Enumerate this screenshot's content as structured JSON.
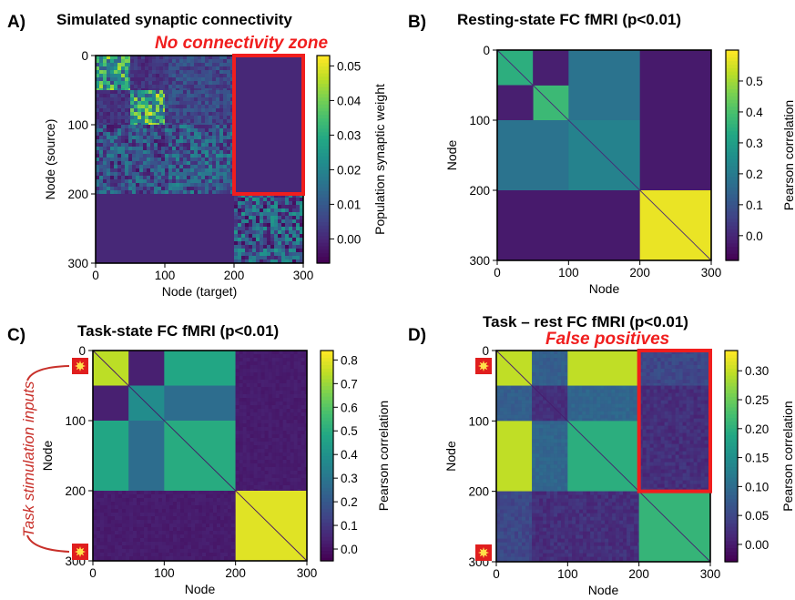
{
  "figure": {
    "annotations": {
      "no_connectivity_zone": "No connectivity zone",
      "false_positives": "False positives",
      "task_stimulation_inputs": "Task stimulation inputs"
    },
    "colormap": "viridis",
    "highlight_color": "#f01e1e",
    "stim_marker_color": "#e01e1e",
    "stim_marker_center_color": "#ffe14a"
  },
  "chart_data": [
    {
      "panel": "A)",
      "type": "heatmap",
      "title": "Simulated synaptic connectivity",
      "xlabel": "Node (target)",
      "ylabel": "Node (source)",
      "xticks": [
        0,
        100,
        200,
        300
      ],
      "yticks": [
        0,
        100,
        200,
        300
      ],
      "xlim": [
        0,
        300
      ],
      "ylim": [
        300,
        0
      ],
      "colorbar": {
        "label": "Population synaptic weight",
        "range": [
          -0.007,
          0.053
        ],
        "ticks": [
          "0.00",
          "0.01",
          "0.02",
          "0.03",
          "0.04",
          "0.05"
        ],
        "tick_values": [
          0.0,
          0.01,
          0.02,
          0.03,
          0.04,
          0.05
        ]
      },
      "blocks": [
        {
          "rows": [
            0,
            50
          ],
          "cols": [
            0,
            50
          ],
          "value": 0.025,
          "noise": 0.022
        },
        {
          "rows": [
            0,
            50
          ],
          "cols": [
            50,
            100
          ],
          "value": 0.002,
          "noise": 0.004
        },
        {
          "rows": [
            0,
            50
          ],
          "cols": [
            100,
            200
          ],
          "value": 0.006,
          "noise": 0.006
        },
        {
          "rows": [
            50,
            100
          ],
          "cols": [
            0,
            50
          ],
          "value": 0.002,
          "noise": 0.004
        },
        {
          "rows": [
            50,
            100
          ],
          "cols": [
            50,
            100
          ],
          "value": 0.028,
          "noise": 0.022
        },
        {
          "rows": [
            50,
            100
          ],
          "cols": [
            100,
            200
          ],
          "value": 0.006,
          "noise": 0.006
        },
        {
          "rows": [
            100,
            200
          ],
          "cols": [
            0,
            100
          ],
          "value": 0.008,
          "noise": 0.012
        },
        {
          "rows": [
            100,
            200
          ],
          "cols": [
            100,
            200
          ],
          "value": 0.01,
          "noise": 0.012
        },
        {
          "rows": [
            0,
            200
          ],
          "cols": [
            200,
            300
          ],
          "value": 0.0,
          "noise": 0.0
        },
        {
          "rows": [
            200,
            300
          ],
          "cols": [
            0,
            200
          ],
          "value": 0.0,
          "noise": 0.0
        },
        {
          "rows": [
            200,
            300
          ],
          "cols": [
            200,
            300
          ],
          "value": 0.01,
          "noise": 0.016
        }
      ],
      "diagonal_value": null,
      "highlight_box": {
        "rows": [
          0,
          200
        ],
        "cols": [
          200,
          300
        ]
      }
    },
    {
      "panel": "B)",
      "type": "heatmap",
      "title": "Resting-state FC fMRI (p<0.01)",
      "xlabel": "Node",
      "ylabel": "Node",
      "xticks": [
        0,
        100,
        200,
        300
      ],
      "yticks": [
        0,
        100,
        200,
        300
      ],
      "xlim": [
        0,
        300
      ],
      "ylim": [
        300,
        0
      ],
      "colorbar": {
        "label": "Pearson correlation",
        "range": [
          -0.08,
          0.6
        ],
        "ticks": [
          "0.0",
          "0.1",
          "0.2",
          "0.3",
          "0.4",
          "0.5"
        ],
        "tick_values": [
          0.0,
          0.1,
          0.2,
          0.3,
          0.4,
          0.5
        ]
      },
      "blocks": [
        {
          "rows": [
            0,
            50
          ],
          "cols": [
            0,
            50
          ],
          "value": 0.35,
          "noise": 0.0
        },
        {
          "rows": [
            50,
            100
          ],
          "cols": [
            50,
            100
          ],
          "value": 0.38,
          "noise": 0.0
        },
        {
          "rows": [
            0,
            50
          ],
          "cols": [
            50,
            100
          ],
          "value": -0.02,
          "noise": 0.0
        },
        {
          "rows": [
            50,
            100
          ],
          "cols": [
            0,
            50
          ],
          "value": -0.02,
          "noise": 0.0
        },
        {
          "rows": [
            0,
            100
          ],
          "cols": [
            100,
            200
          ],
          "value": 0.18,
          "noise": 0.0
        },
        {
          "rows": [
            100,
            200
          ],
          "cols": [
            0,
            100
          ],
          "value": 0.18,
          "noise": 0.0
        },
        {
          "rows": [
            100,
            200
          ],
          "cols": [
            100,
            200
          ],
          "value": 0.22,
          "noise": 0.0
        },
        {
          "rows": [
            0,
            200
          ],
          "cols": [
            200,
            300
          ],
          "value": -0.03,
          "noise": 0.0
        },
        {
          "rows": [
            200,
            300
          ],
          "cols": [
            0,
            200
          ],
          "value": -0.03,
          "noise": 0.0
        },
        {
          "rows": [
            200,
            300
          ],
          "cols": [
            200,
            300
          ],
          "value": 0.58,
          "noise": 0.0
        }
      ],
      "diagonal_value": 0.0,
      "highlight_box": null
    },
    {
      "panel": "C)",
      "type": "heatmap",
      "title": "Task-state FC fMRI (p<0.01)",
      "xlabel": "Node",
      "ylabel": "Node",
      "xticks": [
        0,
        100,
        200,
        300
      ],
      "yticks": [
        0,
        100,
        200,
        300
      ],
      "xlim": [
        0,
        300
      ],
      "ylim": [
        300,
        0
      ],
      "colorbar": {
        "label": "Pearson correlation",
        "range": [
          -0.05,
          0.84
        ],
        "ticks": [
          "0.0",
          "0.1",
          "0.2",
          "0.3",
          "0.4",
          "0.5",
          "0.6",
          "0.7",
          "0.8"
        ],
        "tick_values": [
          0.0,
          0.1,
          0.2,
          0.3,
          0.4,
          0.5,
          0.6,
          0.7,
          0.8
        ]
      },
      "blocks": [
        {
          "rows": [
            0,
            50
          ],
          "cols": [
            0,
            50
          ],
          "value": 0.75,
          "noise": 0.0
        },
        {
          "rows": [
            0,
            50
          ],
          "cols": [
            50,
            100
          ],
          "value": 0.03,
          "noise": 0.0
        },
        {
          "rows": [
            50,
            100
          ],
          "cols": [
            0,
            50
          ],
          "value": 0.03,
          "noise": 0.0
        },
        {
          "rows": [
            50,
            100
          ],
          "cols": [
            50,
            100
          ],
          "value": 0.38,
          "noise": 0.0
        },
        {
          "rows": [
            0,
            50
          ],
          "cols": [
            100,
            200
          ],
          "value": 0.48,
          "noise": 0.0
        },
        {
          "rows": [
            100,
            200
          ],
          "cols": [
            0,
            50
          ],
          "value": 0.48,
          "noise": 0.0
        },
        {
          "rows": [
            50,
            100
          ],
          "cols": [
            100,
            200
          ],
          "value": 0.27,
          "noise": 0.0
        },
        {
          "rows": [
            100,
            200
          ],
          "cols": [
            50,
            100
          ],
          "value": 0.27,
          "noise": 0.0
        },
        {
          "rows": [
            100,
            200
          ],
          "cols": [
            100,
            200
          ],
          "value": 0.5,
          "noise": 0.0
        },
        {
          "rows": [
            0,
            200
          ],
          "cols": [
            200,
            300
          ],
          "value": 0.02,
          "noise": 0.015
        },
        {
          "rows": [
            200,
            300
          ],
          "cols": [
            0,
            200
          ],
          "value": 0.02,
          "noise": 0.015
        },
        {
          "rows": [
            200,
            300
          ],
          "cols": [
            200,
            300
          ],
          "value": 0.8,
          "noise": 0.0
        }
      ],
      "diagonal_value": 0.0,
      "highlight_box": null,
      "stim_markers": [
        0,
        300
      ]
    },
    {
      "panel": "D)",
      "type": "heatmap",
      "title": "Task – rest FC fMRI (p<0.01)",
      "xlabel": "Node",
      "ylabel": "Node",
      "xticks": [
        0,
        100,
        200,
        300
      ],
      "yticks": [
        0,
        100,
        200,
        300
      ],
      "xlim": [
        0,
        300
      ],
      "ylim": [
        300,
        0
      ],
      "colorbar": {
        "label": "Pearson correlation",
        "range": [
          -0.03,
          0.335
        ],
        "ticks": [
          "0.00",
          "0.05",
          "0.10",
          "0.15",
          "0.20",
          "0.25",
          "0.30"
        ],
        "tick_values": [
          0.0,
          0.05,
          0.1,
          0.15,
          0.2,
          0.25,
          0.3
        ]
      },
      "blocks": [
        {
          "rows": [
            0,
            50
          ],
          "cols": [
            0,
            50
          ],
          "value": 0.3,
          "noise": 0.0
        },
        {
          "rows": [
            0,
            50
          ],
          "cols": [
            50,
            100
          ],
          "value": 0.08,
          "noise": 0.01
        },
        {
          "rows": [
            50,
            100
          ],
          "cols": [
            0,
            50
          ],
          "value": 0.08,
          "noise": 0.01
        },
        {
          "rows": [
            50,
            100
          ],
          "cols": [
            50,
            100
          ],
          "value": 0.02,
          "noise": 0.01
        },
        {
          "rows": [
            0,
            50
          ],
          "cols": [
            100,
            200
          ],
          "value": 0.3,
          "noise": 0.0
        },
        {
          "rows": [
            100,
            200
          ],
          "cols": [
            0,
            50
          ],
          "value": 0.3,
          "noise": 0.0
        },
        {
          "rows": [
            50,
            100
          ],
          "cols": [
            100,
            200
          ],
          "value": 0.09,
          "noise": 0.01
        },
        {
          "rows": [
            100,
            200
          ],
          "cols": [
            50,
            100
          ],
          "value": 0.09,
          "noise": 0.01
        },
        {
          "rows": [
            100,
            200
          ],
          "cols": [
            100,
            200
          ],
          "value": 0.2,
          "noise": 0.0
        },
        {
          "rows": [
            0,
            50
          ],
          "cols": [
            200,
            300
          ],
          "value": 0.05,
          "noise": 0.015
        },
        {
          "rows": [
            50,
            200
          ],
          "cols": [
            200,
            300
          ],
          "value": 0.02,
          "noise": 0.015
        },
        {
          "rows": [
            200,
            300
          ],
          "cols": [
            0,
            50
          ],
          "value": 0.05,
          "noise": 0.015
        },
        {
          "rows": [
            200,
            300
          ],
          "cols": [
            50,
            200
          ],
          "value": 0.02,
          "noise": 0.015
        },
        {
          "rows": [
            200,
            300
          ],
          "cols": [
            200,
            300
          ],
          "value": 0.21,
          "noise": 0.0
        }
      ],
      "diagonal_value": 0.0,
      "highlight_box": {
        "rows": [
          0,
          200
        ],
        "cols": [
          200,
          300
        ]
      },
      "stim_markers": [
        0,
        300
      ]
    }
  ]
}
